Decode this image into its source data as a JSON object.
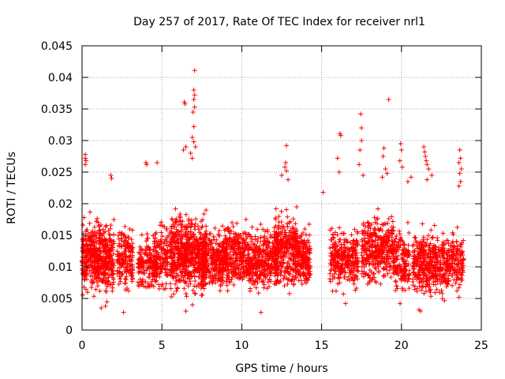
{
  "chart_data": {
    "type": "scatter",
    "title": "Day 257 of 2017, Rate Of TEC Index for receiver nrl1",
    "xlabel": "GPS time / hours",
    "ylabel": "ROTI / TECUs",
    "xlim": [
      0,
      25
    ],
    "ylim": [
      0,
      0.045
    ],
    "xticks": [
      0,
      5,
      10,
      15,
      20,
      25
    ],
    "xtick_labels": [
      "0",
      "5",
      "10",
      "15",
      "20",
      "25"
    ],
    "yticks": [
      0,
      0.005,
      0.01,
      0.015,
      0.02,
      0.025,
      0.03,
      0.035,
      0.04,
      0.045
    ],
    "ytick_labels": [
      "0",
      "0.005",
      "0.01",
      "0.015",
      "0.02",
      "0.025",
      "0.03",
      "0.035",
      "0.04",
      "0.045"
    ],
    "grid": true,
    "marker": "+",
    "marker_color": "#ff0000",
    "clusters": [
      {
        "t_start": 0.0,
        "t_end": 2.0,
        "y_mean": 0.0115,
        "y_spread": 0.0035,
        "count": 520
      },
      {
        "t_start": 2.2,
        "t_end": 3.2,
        "y_mean": 0.011,
        "y_spread": 0.0032,
        "count": 170
      },
      {
        "t_start": 3.5,
        "t_end": 4.6,
        "y_mean": 0.0105,
        "y_spread": 0.003,
        "count": 150
      },
      {
        "t_start": 4.5,
        "t_end": 5.4,
        "y_mean": 0.0115,
        "y_spread": 0.0032,
        "count": 150
      },
      {
        "t_start": 5.5,
        "t_end": 7.8,
        "y_mean": 0.012,
        "y_spread": 0.0038,
        "count": 650
      },
      {
        "t_start": 7.5,
        "t_end": 9.0,
        "y_mean": 0.0112,
        "y_spread": 0.003,
        "count": 280
      },
      {
        "t_start": 8.8,
        "t_end": 10.5,
        "y_mean": 0.0118,
        "y_spread": 0.003,
        "count": 330
      },
      {
        "t_start": 10.5,
        "t_end": 12.3,
        "y_mean": 0.011,
        "y_spread": 0.003,
        "count": 330
      },
      {
        "t_start": 12.0,
        "t_end": 13.5,
        "y_mean": 0.0125,
        "y_spread": 0.0035,
        "count": 330
      },
      {
        "t_start": 13.5,
        "t_end": 14.3,
        "y_mean": 0.0115,
        "y_spread": 0.003,
        "count": 170
      },
      {
        "t_start": 15.5,
        "t_end": 17.3,
        "y_mean": 0.0115,
        "y_spread": 0.003,
        "count": 290
      },
      {
        "t_start": 17.5,
        "t_end": 19.5,
        "y_mean": 0.0128,
        "y_spread": 0.0035,
        "count": 360
      },
      {
        "t_start": 19.5,
        "t_end": 20.5,
        "y_mean": 0.0108,
        "y_spread": 0.003,
        "count": 170
      },
      {
        "t_start": 20.7,
        "t_end": 23.0,
        "y_mean": 0.0105,
        "y_spread": 0.0032,
        "count": 430
      },
      {
        "t_start": 23.0,
        "t_end": 23.9,
        "y_mean": 0.011,
        "y_spread": 0.003,
        "count": 130
      }
    ],
    "outliers": [
      {
        "x": 0.2,
        "y": 0.0278
      },
      {
        "x": 0.2,
        "y": 0.0272
      },
      {
        "x": 0.25,
        "y": 0.0268
      },
      {
        "x": 0.2,
        "y": 0.0262
      },
      {
        "x": 1.8,
        "y": 0.0245
      },
      {
        "x": 1.85,
        "y": 0.024
      },
      {
        "x": 4.0,
        "y": 0.0265
      },
      {
        "x": 4.05,
        "y": 0.0262
      },
      {
        "x": 4.7,
        "y": 0.0265
      },
      {
        "x": 6.4,
        "y": 0.0361
      },
      {
        "x": 6.45,
        "y": 0.0358
      },
      {
        "x": 6.5,
        "y": 0.029
      },
      {
        "x": 6.35,
        "y": 0.0285
      },
      {
        "x": 7.05,
        "y": 0.0411
      },
      {
        "x": 7.0,
        "y": 0.038
      },
      {
        "x": 7.05,
        "y": 0.0372
      },
      {
        "x": 7.0,
        "y": 0.0365
      },
      {
        "x": 7.05,
        "y": 0.0353
      },
      {
        "x": 6.95,
        "y": 0.0345
      },
      {
        "x": 7.0,
        "y": 0.0322
      },
      {
        "x": 6.9,
        "y": 0.0305
      },
      {
        "x": 7.0,
        "y": 0.0298
      },
      {
        "x": 7.1,
        "y": 0.029
      },
      {
        "x": 6.8,
        "y": 0.028
      },
      {
        "x": 6.9,
        "y": 0.0272
      },
      {
        "x": 12.8,
        "y": 0.0292
      },
      {
        "x": 12.75,
        "y": 0.0265
      },
      {
        "x": 12.7,
        "y": 0.0258
      },
      {
        "x": 12.8,
        "y": 0.0252
      },
      {
        "x": 12.5,
        "y": 0.0245
      },
      {
        "x": 12.9,
        "y": 0.0238
      },
      {
        "x": 15.1,
        "y": 0.0218
      },
      {
        "x": 16.0,
        "y": 0.0272
      },
      {
        "x": 16.15,
        "y": 0.0311
      },
      {
        "x": 16.2,
        "y": 0.0308
      },
      {
        "x": 16.1,
        "y": 0.025
      },
      {
        "x": 17.45,
        "y": 0.0342
      },
      {
        "x": 17.5,
        "y": 0.032
      },
      {
        "x": 17.5,
        "y": 0.03
      },
      {
        "x": 17.4,
        "y": 0.0285
      },
      {
        "x": 17.35,
        "y": 0.0262
      },
      {
        "x": 17.6,
        "y": 0.0245
      },
      {
        "x": 18.9,
        "y": 0.0288
      },
      {
        "x": 18.85,
        "y": 0.0275
      },
      {
        "x": 19.2,
        "y": 0.0365
      },
      {
        "x": 19.0,
        "y": 0.0255
      },
      {
        "x": 19.1,
        "y": 0.0248
      },
      {
        "x": 18.8,
        "y": 0.0242
      },
      {
        "x": 19.95,
        "y": 0.0295
      },
      {
        "x": 20.0,
        "y": 0.0285
      },
      {
        "x": 19.9,
        "y": 0.0268
      },
      {
        "x": 20.05,
        "y": 0.0258
      },
      {
        "x": 20.4,
        "y": 0.0235
      },
      {
        "x": 20.6,
        "y": 0.0242
      },
      {
        "x": 21.4,
        "y": 0.029
      },
      {
        "x": 21.45,
        "y": 0.0282
      },
      {
        "x": 21.5,
        "y": 0.0275
      },
      {
        "x": 21.55,
        "y": 0.0268
      },
      {
        "x": 21.6,
        "y": 0.0262
      },
      {
        "x": 21.7,
        "y": 0.0255
      },
      {
        "x": 21.9,
        "y": 0.0245
      },
      {
        "x": 21.6,
        "y": 0.0238
      },
      {
        "x": 23.65,
        "y": 0.0285
      },
      {
        "x": 23.7,
        "y": 0.0272
      },
      {
        "x": 23.6,
        "y": 0.0265
      },
      {
        "x": 23.75,
        "y": 0.0255
      },
      {
        "x": 23.65,
        "y": 0.0248
      },
      {
        "x": 23.7,
        "y": 0.0235
      },
      {
        "x": 23.6,
        "y": 0.0228
      },
      {
        "x": 1.2,
        "y": 0.0035
      },
      {
        "x": 2.6,
        "y": 0.0028
      },
      {
        "x": 6.5,
        "y": 0.003
      },
      {
        "x": 11.2,
        "y": 0.0028
      },
      {
        "x": 16.5,
        "y": 0.0042
      },
      {
        "x": 21.1,
        "y": 0.0032
      },
      {
        "x": 21.2,
        "y": 0.003
      }
    ]
  }
}
